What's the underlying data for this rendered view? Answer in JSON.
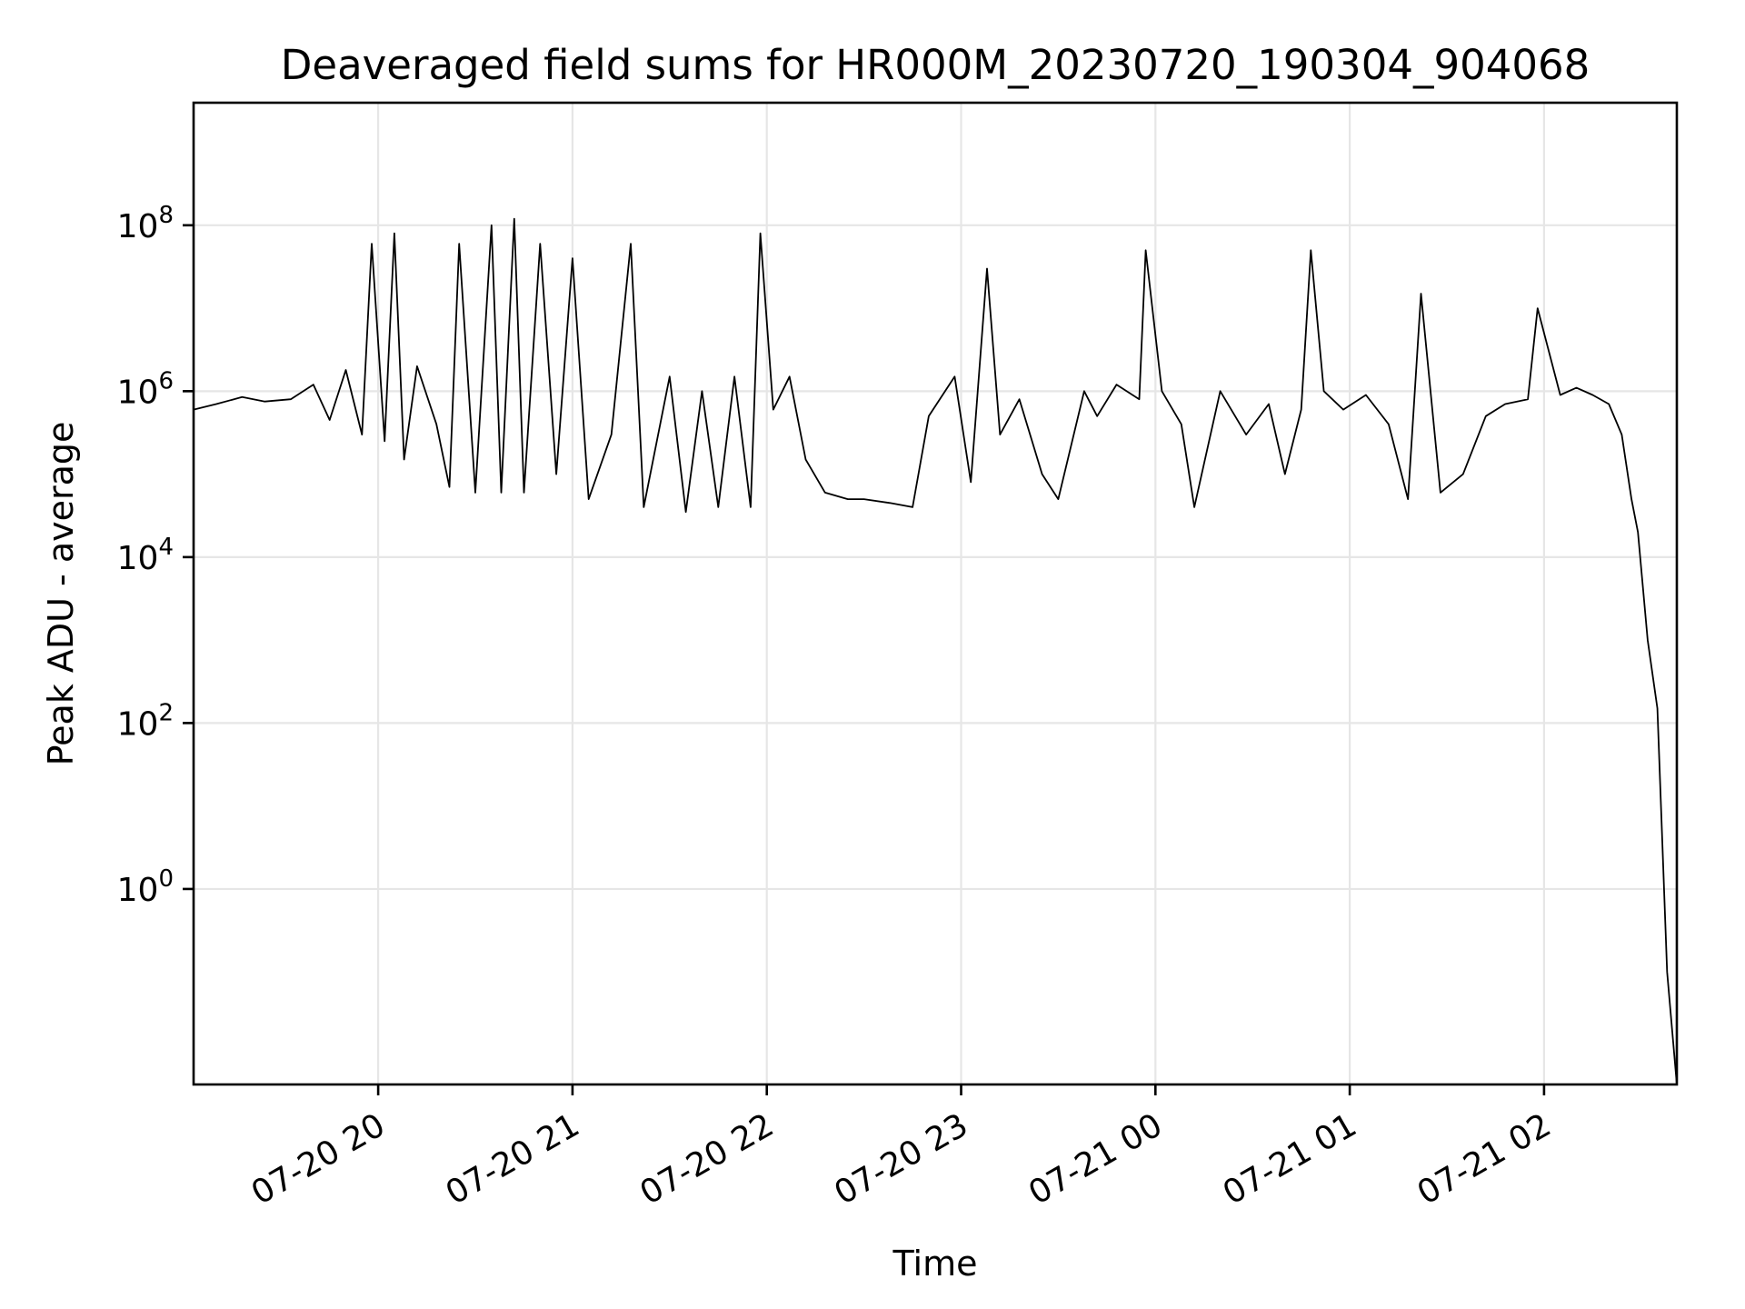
{
  "chart_data": {
    "type": "line",
    "title": "Deaveraged field sums for HR000M_20230720_190304_904068",
    "xlabel": "Time",
    "ylabel": "Peak ADU - average",
    "x_start": "07-20 19:03",
    "x_end": "07-21 02:41",
    "xlim": [
      "07-20 19:03",
      "07-21 02:41"
    ],
    "y_scale": "log",
    "ylim": [
      0.0044,
      3000000000
    ],
    "x_ticks": [
      {
        "value": "07-20 20:00",
        "label": "07-20 20"
      },
      {
        "value": "07-20 21:00",
        "label": "07-20 21"
      },
      {
        "value": "07-20 22:00",
        "label": "07-20 22"
      },
      {
        "value": "07-20 23:00",
        "label": "07-20 23"
      },
      {
        "value": "07-21 00:00",
        "label": "07-21 00"
      },
      {
        "value": "07-21 01:00",
        "label": "07-21 01"
      },
      {
        "value": "07-21 02:00",
        "label": "07-21 02"
      }
    ],
    "y_ticks": [
      {
        "value": 1,
        "base": "10",
        "exp": "0"
      },
      {
        "value": 100,
        "base": "10",
        "exp": "2"
      },
      {
        "value": 10000,
        "base": "10",
        "exp": "4"
      },
      {
        "value": 1000000,
        "base": "10",
        "exp": "6"
      },
      {
        "value": 100000000,
        "base": "10",
        "exp": "8"
      }
    ],
    "grid": true,
    "series": [
      {
        "color": "#000000",
        "points": [
          [
            "07-20 19:03",
            600000
          ],
          [
            "07-20 19:10",
            700000
          ],
          [
            "07-20 19:18",
            850000
          ],
          [
            "07-20 19:25",
            750000
          ],
          [
            "07-20 19:33",
            800000
          ],
          [
            "07-20 19:40",
            1200000
          ],
          [
            "07-20 19:45",
            450000
          ],
          [
            "07-20 19:50",
            1800000
          ],
          [
            "07-20 19:55",
            300000
          ],
          [
            "07-20 19:58",
            60000000
          ],
          [
            "07-20 20:02",
            250000
          ],
          [
            "07-20 20:05",
            80000000
          ],
          [
            "07-20 20:08",
            150000
          ],
          [
            "07-20 20:12",
            2000000
          ],
          [
            "07-20 20:18",
            400000
          ],
          [
            "07-20 20:22",
            70000
          ],
          [
            "07-20 20:25",
            60000000
          ],
          [
            "07-20 20:30",
            60000
          ],
          [
            "07-20 20:35",
            100000000
          ],
          [
            "07-20 20:38",
            60000
          ],
          [
            "07-20 20:42",
            120000000
          ],
          [
            "07-20 20:45",
            60000
          ],
          [
            "07-20 20:50",
            60000000
          ],
          [
            "07-20 20:55",
            100000
          ],
          [
            "07-20 21:00",
            40000000
          ],
          [
            "07-20 21:05",
            50000
          ],
          [
            "07-20 21:12",
            300000
          ],
          [
            "07-20 21:18",
            60000000
          ],
          [
            "07-20 21:22",
            40000
          ],
          [
            "07-20 21:30",
            1500000
          ],
          [
            "07-20 21:35",
            35000
          ],
          [
            "07-20 21:40",
            1000000
          ],
          [
            "07-20 21:45",
            40000
          ],
          [
            "07-20 21:50",
            1500000
          ],
          [
            "07-20 21:55",
            40000
          ],
          [
            "07-20 21:58",
            80000000
          ],
          [
            "07-20 22:02",
            600000
          ],
          [
            "07-20 22:07",
            1500000
          ],
          [
            "07-20 22:12",
            150000
          ],
          [
            "07-20 22:18",
            60000
          ],
          [
            "07-20 22:25",
            50000
          ],
          [
            "07-20 22:30",
            50000
          ],
          [
            "07-20 22:38",
            45000
          ],
          [
            "07-20 22:45",
            40000
          ],
          [
            "07-20 22:50",
            500000
          ],
          [
            "07-20 22:58",
            1500000
          ],
          [
            "07-20 23:03",
            80000
          ],
          [
            "07-20 23:08",
            30000000
          ],
          [
            "07-20 23:12",
            300000
          ],
          [
            "07-20 23:18",
            800000
          ],
          [
            "07-20 23:25",
            100000
          ],
          [
            "07-20 23:30",
            50000
          ],
          [
            "07-20 23:38",
            1000000
          ],
          [
            "07-20 23:42",
            500000
          ],
          [
            "07-20 23:48",
            1200000
          ],
          [
            "07-20 23:55",
            800000
          ],
          [
            "07-20 23:57",
            50000000
          ],
          [
            "07-21 00:02",
            1000000
          ],
          [
            "07-21 00:08",
            400000
          ],
          [
            "07-21 00:12",
            40000
          ],
          [
            "07-21 00:20",
            1000000
          ],
          [
            "07-21 00:28",
            300000
          ],
          [
            "07-21 00:35",
            700000
          ],
          [
            "07-21 00:40",
            100000
          ],
          [
            "07-21 00:45",
            600000
          ],
          [
            "07-21 00:48",
            50000000
          ],
          [
            "07-21 00:52",
            1000000
          ],
          [
            "07-21 00:58",
            600000
          ],
          [
            "07-21 01:05",
            900000
          ],
          [
            "07-21 01:12",
            400000
          ],
          [
            "07-21 01:18",
            50000
          ],
          [
            "07-21 01:22",
            15000000
          ],
          [
            "07-21 01:28",
            60000
          ],
          [
            "07-21 01:35",
            100000
          ],
          [
            "07-21 01:42",
            500000
          ],
          [
            "07-21 01:48",
            700000
          ],
          [
            "07-21 01:55",
            800000
          ],
          [
            "07-21 01:58",
            10000000
          ],
          [
            "07-21 02:05",
            900000
          ],
          [
            "07-21 02:10",
            1100000
          ],
          [
            "07-21 02:15",
            900000
          ],
          [
            "07-21 02:20",
            700000
          ],
          [
            "07-21 02:24",
            300000
          ],
          [
            "07-21 02:27",
            50000
          ],
          [
            "07-21 02:29",
            20000
          ],
          [
            "07-21 02:32",
            1000
          ],
          [
            "07-21 02:35",
            150
          ],
          [
            "07-21 02:38",
            0.1
          ],
          [
            "07-21 02:41",
            0.0044
          ]
        ]
      }
    ]
  }
}
